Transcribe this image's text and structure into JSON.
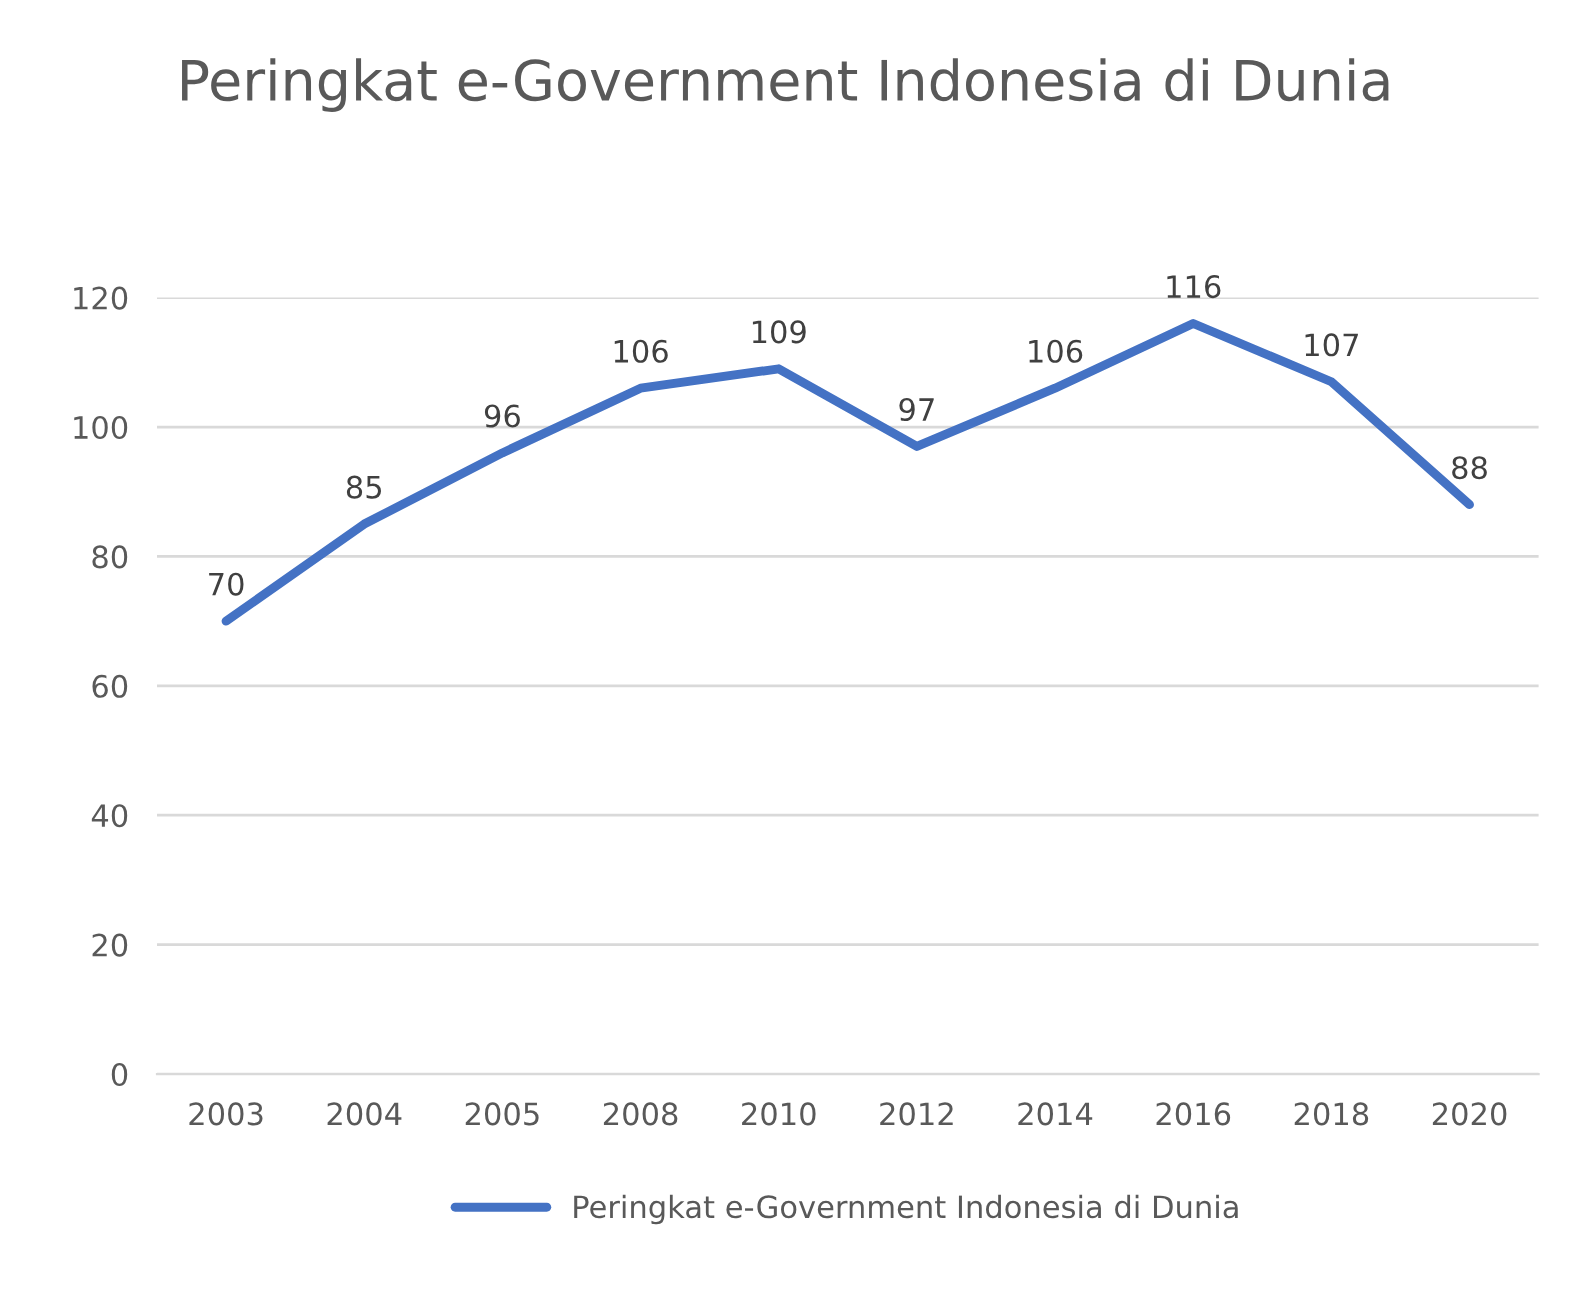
{
  "chart_data": {
    "type": "line",
    "title": "Peringkat e-Government Indonesia di Dunia",
    "categories": [
      "2003",
      "2004",
      "2005",
      "2008",
      "2010",
      "2012",
      "2014",
      "2016",
      "2018",
      "2020"
    ],
    "series": [
      {
        "name": "Peringkat e-Government Indonesia di Dunia",
        "color": "#4472c4",
        "values": [
          70,
          85,
          96,
          106,
          109,
          97,
          106,
          116,
          107,
          88
        ]
      }
    ],
    "ylim": [
      0,
      120
    ],
    "yticks": [
      0,
      20,
      40,
      60,
      80,
      100,
      120
    ],
    "grid": "y",
    "legend": "bottom",
    "data_labels": true,
    "marker": "none",
    "line_style": "solid"
  }
}
